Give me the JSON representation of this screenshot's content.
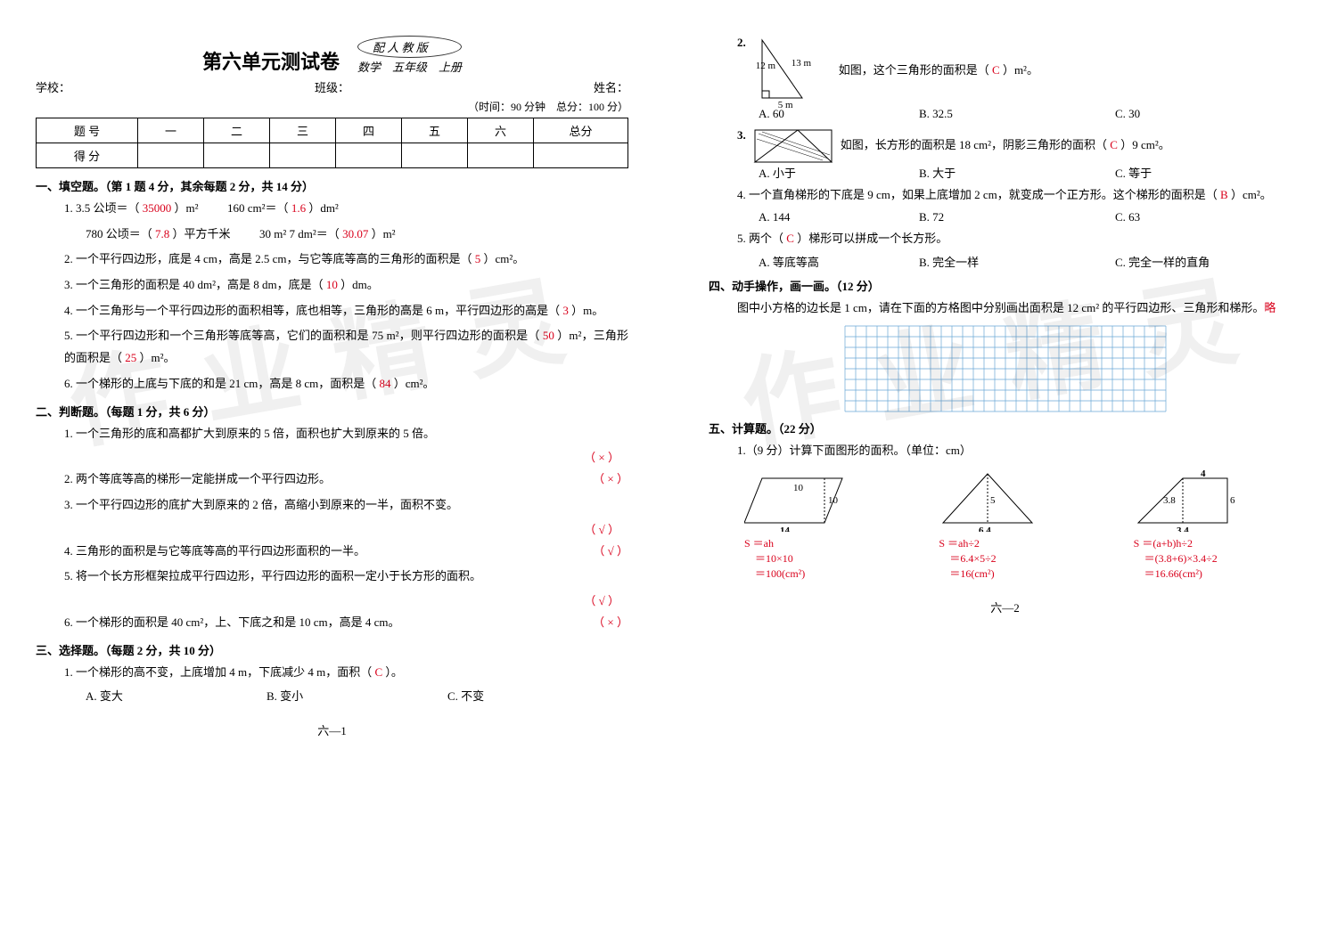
{
  "left": {
    "title": "第六单元测试卷",
    "badge": "配 人 教 版",
    "subj": "数学　五年级　上册",
    "meta": {
      "school": "学校：",
      "class": "班级：",
      "name": "姓名："
    },
    "time": "（时间：90 分钟　总分：100 分）",
    "score_head": [
      "题 号",
      "一",
      "二",
      "三",
      "四",
      "五",
      "六",
      "总分"
    ],
    "score_row": "得 分",
    "s1": "一、填空题。（第 1 题 4 分，其余每题 2 分，共 14 分）",
    "q1a_l": "1. 3.5 公顷＝（",
    "q1a_a": " 35000 ",
    "q1a_r": "）m²",
    "q1b_l": "160 cm²＝（",
    "q1b_a": " 1.6 ",
    "q1b_r": "）dm²",
    "q1c_l": "780 公顷＝（",
    "q1c_a": " 7.8 ",
    "q1c_r": "）平方千米",
    "q1d_l": "30 m² 7 dm²＝（",
    "q1d_a": " 30.07 ",
    "q1d_r": "）m²",
    "q2_l": "2. 一个平行四边形，底是 4 cm，高是 2.5 cm，与它等底等高的三角形的面积是（",
    "q2_a": " 5 ",
    "q2_r": "）cm²。",
    "q3_l": "3. 一个三角形的面积是 40 dm²，高是 8 dm，底是（",
    "q3_a": " 10 ",
    "q3_r": "）dm。",
    "q4_l": "4. 一个三角形与一个平行四边形的面积相等，底也相等，三角形的高是 6 m，平行四边形的高是（",
    "q4_a": " 3 ",
    "q4_r": "）m。",
    "q5_l": "5. 一个平行四边形和一个三角形等底等高，它们的面积和是 75 m²，则平行四边形的面积是（",
    "q5_a": " 50 ",
    "q5_m": "）m²，三角形的面积是（",
    "q5_b": " 25 ",
    "q5_r": "）m²。",
    "q6_l": "6. 一个梯形的上底与下底的和是 21 cm，高是 8 cm，面积是（",
    "q6_a": " 84 ",
    "q6_r": "）cm²。",
    "s2": "二、判断题。（每题 1 分，共 6 分）",
    "j1": "1. 一个三角形的底和高都扩大到原来的 5 倍，面积也扩大到原来的 5 倍。",
    "j1a": "（ × ）",
    "j2": "2. 两个等底等高的梯形一定能拼成一个平行四边形。",
    "j2a": "（ × ）",
    "j3": "3. 一个平行四边形的底扩大到原来的 2 倍，高缩小到原来的一半，面积不变。",
    "j3a": "（ √ ）",
    "j4": "4. 三角形的面积是与它等底等高的平行四边形面积的一半。",
    "j4a": "（ √ ）",
    "j5": "5. 将一个长方形框架拉成平行四边形，平行四边形的面积一定小于长方形的面积。",
    "j5a": "（ √ ）",
    "j6": "6. 一个梯形的面积是 40 cm²，上、下底之和是 10 cm，高是 4 cm。",
    "j6a": "（ × ）",
    "s3": "三、选择题。（每题 2 分，共 10 分）",
    "c1_l": "1. 一个梯形的高不变，上底增加 4 m，下底减少 4 m，面积（",
    "c1_a": " C ",
    "c1_r": "）。",
    "c1_opts": {
      "a": "A. 变大",
      "b": "B. 变小",
      "c": "C. 不变"
    },
    "pg": "六—1",
    "wm": "作业精灵"
  },
  "right": {
    "c2_l": "如图，这个三角形的面积是（",
    "c2_a": " C ",
    "c2_r": "）m²。",
    "c2_num": "2.",
    "c2_dims": {
      "h": "12 m",
      "hyp": "13 m",
      "b": "5 m"
    },
    "c2_opts": {
      "a": "A. 60",
      "b": "B. 32.5",
      "c": "C. 30"
    },
    "c3_num": "3.",
    "c3_l": "如图，长方形的面积是 18 cm²，阴影三角形的面积（",
    "c3_a": " C ",
    "c3_r": "）9 cm²。",
    "c3_opts": {
      "a": "A. 小于",
      "b": "B. 大于",
      "c": "C. 等于"
    },
    "c4_l": "4. 一个直角梯形的下底是 9 cm，如果上底增加 2 cm，就变成一个正方形。这个梯形的面积是（",
    "c4_a": " B ",
    "c4_r": "）cm²。",
    "c4_opts": {
      "a": "A. 144",
      "b": "B. 72",
      "c": "C. 63"
    },
    "c5_l": "5. 两个（",
    "c5_a": " C ",
    "c5_r": "）梯形可以拼成一个长方形。",
    "c5_opts": {
      "a": "A. 等底等高",
      "b": "B. 完全一样",
      "c": "C. 完全一样的直角"
    },
    "s4": "四、动手操作，画一画。（12 分）",
    "s4q": "图中小方格的边长是 1 cm，请在下面的方格图中分别画出面积是 12 cm² 的平行四边形、三角形和梯形。",
    "s4a": "略",
    "grid": {
      "cols": 30,
      "rows": 8,
      "cell": 12,
      "stroke": "#6aa7d6"
    },
    "s5": "五、计算题。（22 分）",
    "s5q": "1.（9 分）计算下面图形的面积。（单位：cm）",
    "calc1": {
      "dims": [
        "10",
        "10",
        "14"
      ],
      "lines": [
        "S ＝ah",
        "　＝10×10",
        "　＝100(cm²)"
      ]
    },
    "calc2": {
      "dims": [
        "5",
        "6.4"
      ],
      "lines": [
        "S ＝ah÷2",
        "　＝6.4×5÷2",
        "　＝16(cm²)"
      ]
    },
    "calc3": {
      "dims": [
        "4",
        "3.8",
        "6",
        "3.4"
      ],
      "lines": [
        "S ＝(a+b)h÷2",
        "　＝(3.8+6)×3.4÷2",
        "　＝16.66(cm²)"
      ]
    },
    "pg": "六—2",
    "wm": "作业精灵"
  },
  "color": {
    "answer": "#d9001b"
  }
}
